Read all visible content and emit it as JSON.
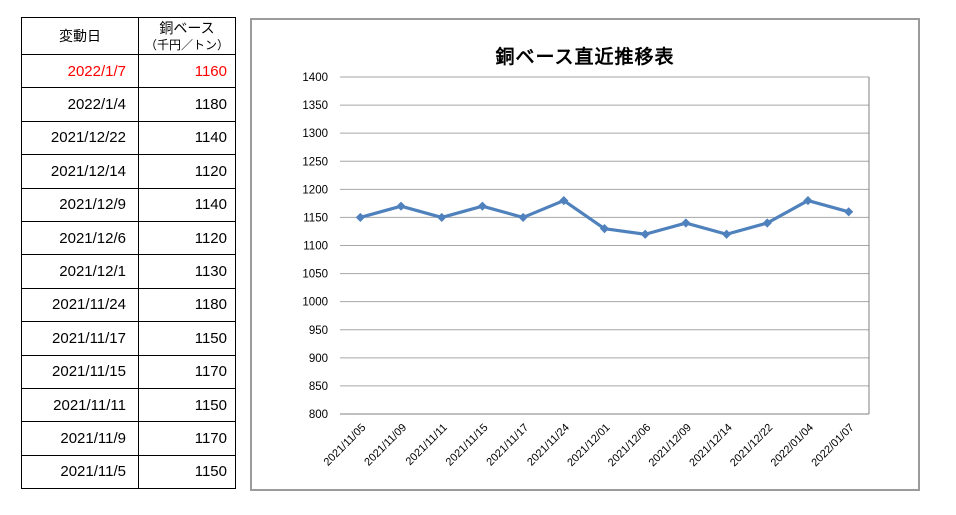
{
  "table": {
    "headers": {
      "date": "変動日",
      "value_line1": "銅ベース",
      "value_line2": "（千円／トン）"
    },
    "rows": [
      {
        "date": "2022/1/7",
        "value": "1160",
        "highlight": true
      },
      {
        "date": "2022/1/4",
        "value": "1180",
        "highlight": false
      },
      {
        "date": "2021/12/22",
        "value": "1140",
        "highlight": false
      },
      {
        "date": "2021/12/14",
        "value": "1120",
        "highlight": false
      },
      {
        "date": "2021/12/9",
        "value": "1140",
        "highlight": false
      },
      {
        "date": "2021/12/6",
        "value": "1120",
        "highlight": false
      },
      {
        "date": "2021/12/1",
        "value": "1130",
        "highlight": false
      },
      {
        "date": "2021/11/24",
        "value": "1180",
        "highlight": false
      },
      {
        "date": "2021/11/17",
        "value": "1150",
        "highlight": false
      },
      {
        "date": "2021/11/15",
        "value": "1170",
        "highlight": false
      },
      {
        "date": "2021/11/11",
        "value": "1150",
        "highlight": false
      },
      {
        "date": "2021/11/9",
        "value": "1170",
        "highlight": false
      },
      {
        "date": "2021/11/5",
        "value": "1150",
        "highlight": false
      }
    ]
  },
  "chart_data": {
    "type": "line",
    "title": "銅ベース直近推移表",
    "categories": [
      "2021/11/05",
      "2021/11/09",
      "2021/11/11",
      "2021/11/15",
      "2021/11/17",
      "2021/11/24",
      "2021/12/01",
      "2021/12/06",
      "2021/12/09",
      "2021/12/14",
      "2021/12/22",
      "2022/01/04",
      "2022/01/07"
    ],
    "values": [
      1150,
      1170,
      1150,
      1170,
      1150,
      1180,
      1130,
      1120,
      1140,
      1120,
      1140,
      1180,
      1160
    ],
    "xlabel": "",
    "ylabel": "",
    "ylim": [
      800,
      1400
    ],
    "ytick_step": 50,
    "grid": true,
    "legend": "none",
    "marker": "diamond",
    "x_label_rotation": -45
  },
  "colors": {
    "line": "#4f81bd",
    "grid": "#a6a6a6",
    "axis": "#808080",
    "highlight": "#ff0000",
    "chart_border": "#9b9b9b",
    "table_border": "#000000",
    "text": "#000000"
  }
}
